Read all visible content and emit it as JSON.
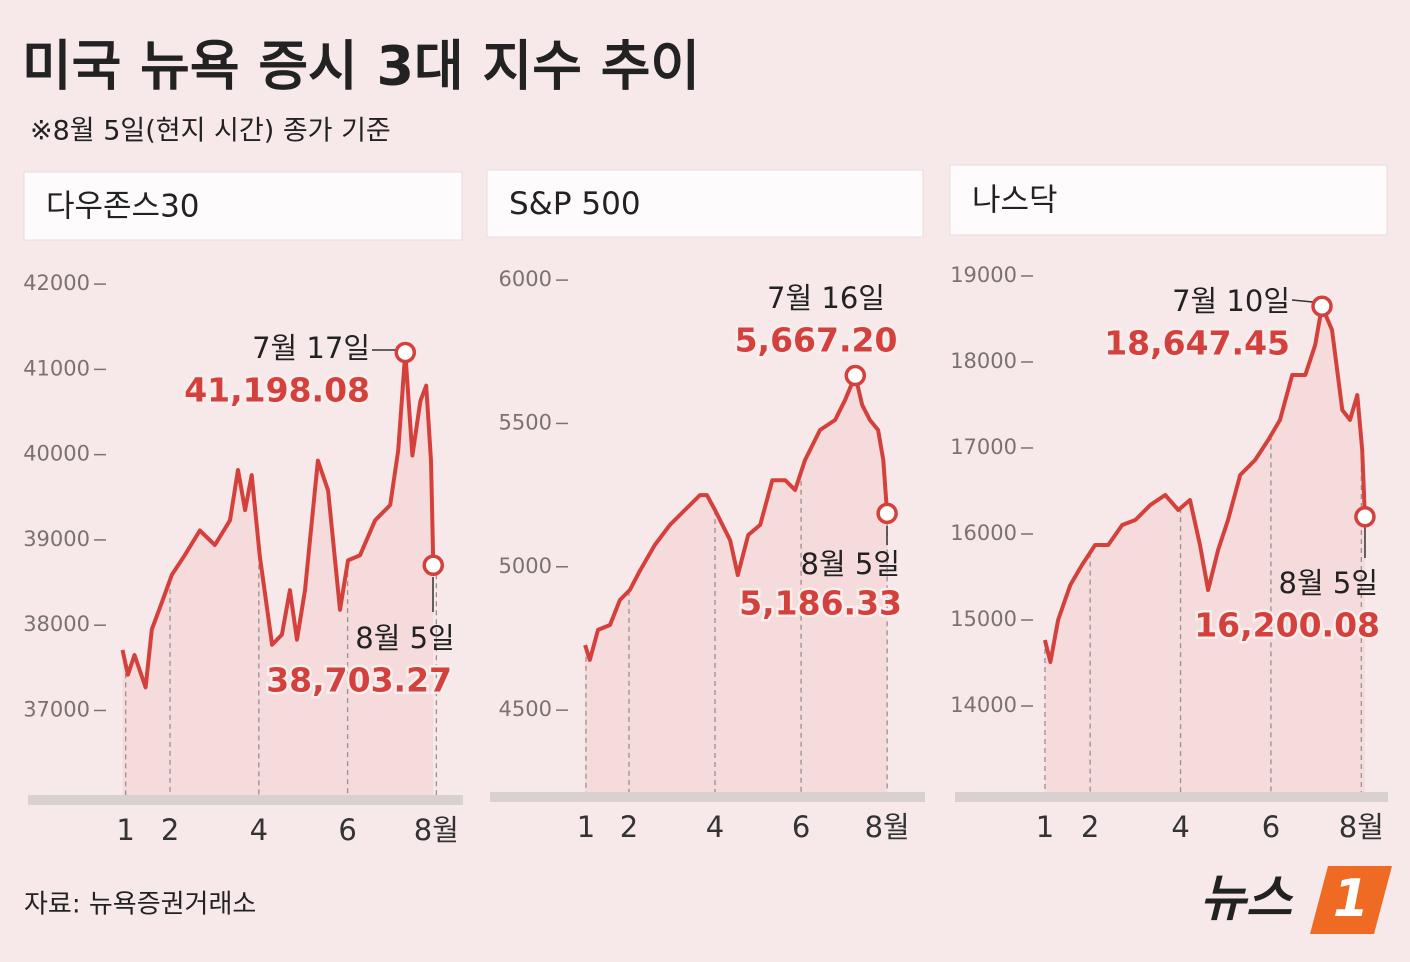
{
  "title": "미국 뉴욕 증시 3대 지수 추이",
  "subtitle": "※8월 5일(현지 시간) 종가 기준",
  "source": "자료: 뉴욕증권거래소",
  "logo": {
    "text": "뉴스",
    "mark": "1"
  },
  "chart_data": [
    {
      "type": "line",
      "title": "다우존스30",
      "color": "#d4413d",
      "x": [
        0.93,
        1.05,
        1.2,
        1.45,
        1.59,
        1.84,
        2.04,
        2.33,
        2.67,
        3.01,
        3.35,
        3.53,
        3.69,
        3.84,
        4.02,
        4.3,
        4.52,
        4.7,
        4.86,
        5.04,
        5.33,
        5.56,
        5.83,
        6.01,
        6.28,
        6.62,
        6.96,
        7.14,
        7.3,
        7.46,
        7.64,
        7.77,
        7.88,
        7.93
      ],
      "values": [
        37710,
        37420,
        37650,
        37270,
        37950,
        38300,
        38590,
        38820,
        39110,
        38940,
        39230,
        39820,
        39350,
        39760,
        38820,
        37770,
        37890,
        38410,
        37830,
        38410,
        39930,
        39580,
        38180,
        38760,
        38820,
        39230,
        39410,
        40050,
        41198.08,
        39990,
        40630,
        40810,
        39930,
        38703.27
      ],
      "value_labels": [
        null,
        null,
        null,
        null,
        null,
        null,
        null,
        null,
        null,
        null,
        null,
        null,
        null,
        null,
        null,
        null,
        null,
        null,
        null,
        null,
        null,
        null,
        null,
        null,
        null,
        null,
        null,
        null,
        "41,198.08",
        null,
        null,
        null,
        null,
        "38,703.27"
      ],
      "point_labels": [
        null,
        null,
        null,
        null,
        null,
        null,
        null,
        null,
        null,
        null,
        null,
        null,
        null,
        null,
        null,
        null,
        null,
        null,
        null,
        null,
        null,
        null,
        null,
        null,
        null,
        null,
        null,
        null,
        "7월 17일",
        null,
        null,
        null,
        null,
        "8월 5일"
      ],
      "xlim": [
        -1.2,
        8.6
      ],
      "xticks": [
        1,
        2,
        4,
        {
          "value": 6,
          "label": "6"
        },
        {
          "value": 8,
          "label": "8월"
        }
      ],
      "ylim": [
        35950,
        42400
      ],
      "yticks": [
        37000,
        38000,
        39000,
        40000,
        41000,
        42000
      ]
    },
    {
      "type": "line",
      "title": "S&P 500",
      "color": "#d4413d",
      "x": [
        0.98,
        1.09,
        1.28,
        1.56,
        1.79,
        2.02,
        2.26,
        2.6,
        2.95,
        3.3,
        3.65,
        3.81,
        4.0,
        4.35,
        4.53,
        4.77,
        5.05,
        5.33,
        5.63,
        5.86,
        6.09,
        6.44,
        6.79,
        7.02,
        7.26,
        7.42,
        7.6,
        7.79,
        7.91,
        8.0
      ],
      "values": [
        4727,
        4675,
        4780,
        4797,
        4884,
        4919,
        4988,
        5076,
        5146,
        5198,
        5250,
        5250,
        5198,
        5093,
        4971,
        5111,
        5146,
        5302,
        5302,
        5268,
        5372,
        5477,
        5512,
        5581,
        5667.2,
        5564,
        5512,
        5477,
        5372,
        5186.33
      ],
      "value_labels": [
        null,
        null,
        null,
        null,
        null,
        null,
        null,
        null,
        null,
        null,
        null,
        null,
        null,
        null,
        null,
        null,
        null,
        null,
        null,
        null,
        null,
        null,
        null,
        null,
        "5,667.20",
        null,
        null,
        null,
        null,
        "5,186.33"
      ],
      "point_labels": [
        null,
        null,
        null,
        null,
        null,
        null,
        null,
        null,
        null,
        null,
        null,
        null,
        null,
        null,
        null,
        null,
        null,
        null,
        null,
        null,
        null,
        null,
        null,
        null,
        "7월 16일",
        null,
        null,
        null,
        null,
        "8월 5일"
      ],
      "xlim": [
        -1.23,
        8.88
      ],
      "xticks": [
        1,
        2,
        4,
        6,
        {
          "value": 8,
          "label": "8월"
        }
      ],
      "ylim": [
        4197,
        6105
      ],
      "yticks": [
        4500,
        5000,
        5500,
        6000
      ]
    },
    {
      "type": "line",
      "title": "나스닥",
      "color": "#d4413d",
      "x": [
        1.0,
        1.12,
        1.29,
        1.56,
        1.82,
        2.11,
        2.4,
        2.71,
        3.0,
        3.33,
        3.66,
        3.95,
        4.21,
        4.43,
        4.61,
        4.83,
        5.05,
        5.32,
        5.65,
        5.94,
        6.2,
        6.47,
        6.76,
        6.98,
        7.13,
        7.35,
        7.58,
        7.75,
        7.91,
        8.02,
        8.08
      ],
      "values": [
        14767,
        14512,
        15000,
        15407,
        15640,
        15872,
        15872,
        16105,
        16163,
        16337,
        16453,
        16279,
        16395,
        15872,
        15349,
        15814,
        16163,
        16686,
        16860,
        17093,
        17326,
        17849,
        17849,
        18198,
        18647.45,
        18372,
        17442,
        17326,
        17616,
        16977,
        16200.08
      ],
      "value_labels": [
        null,
        null,
        null,
        null,
        null,
        null,
        null,
        null,
        null,
        null,
        null,
        null,
        null,
        null,
        null,
        null,
        null,
        null,
        null,
        null,
        null,
        null,
        null,
        null,
        "18,647.45",
        null,
        null,
        null,
        null,
        null,
        "16,200.08"
      ],
      "point_labels": [
        null,
        null,
        null,
        null,
        null,
        null,
        null,
        null,
        null,
        null,
        null,
        null,
        null,
        null,
        null,
        null,
        null,
        null,
        null,
        null,
        null,
        null,
        null,
        null,
        "7월 10일",
        null,
        null,
        null,
        null,
        null,
        "8월 5일"
      ],
      "xlim": [
        -0.99,
        8.59
      ],
      "xticks": [
        1,
        2,
        4,
        6,
        {
          "value": 8,
          "label": "8월"
        }
      ],
      "ylim": [
        12942,
        19360
      ],
      "yticks": [
        14000,
        15000,
        16000,
        17000,
        18000,
        19000
      ]
    }
  ]
}
